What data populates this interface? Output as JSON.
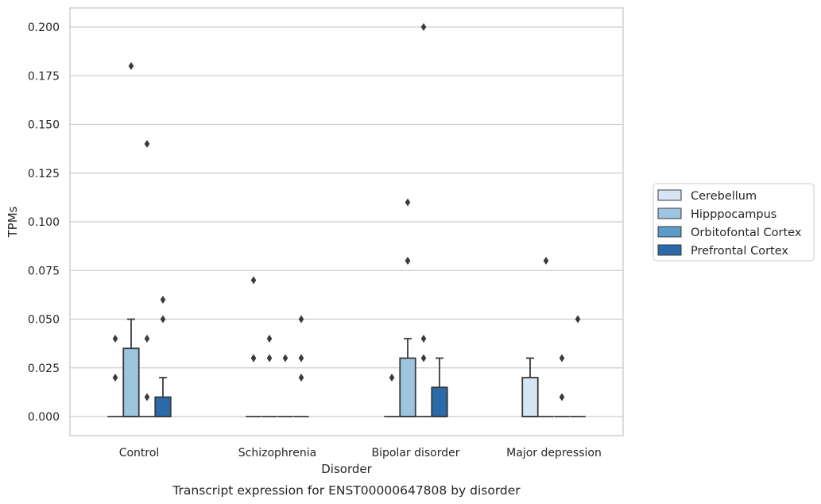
{
  "chart_data": {
    "type": "box",
    "title": "",
    "caption": "Transcript expression for ENST00000647808 by disorder",
    "xlabel": "Disorder",
    "ylabel": "TPMs",
    "categories": [
      "Control",
      "Schizophrenia",
      "Bipolar disorder",
      "Major depression"
    ],
    "ylim": [
      -0.01,
      0.21
    ],
    "yticks": [
      "0.000",
      "0.025",
      "0.050",
      "0.075",
      "0.100",
      "0.125",
      "0.150",
      "0.175",
      "0.200"
    ],
    "grid": "horizontal",
    "legend_position": "right",
    "series": [
      {
        "name": "Cerebellum",
        "color": "#d6e5f4",
        "boxes": [
          {
            "q1": 0,
            "median": 0,
            "q3": 0,
            "whisker_low": 0,
            "whisker_high": 0,
            "outliers": [
              0.02,
              0.04
            ]
          },
          {
            "q1": 0,
            "median": 0,
            "q3": 0,
            "whisker_low": 0,
            "whisker_high": 0,
            "outliers": [
              0.03,
              0.03,
              0.07
            ]
          },
          {
            "q1": 0,
            "median": 0,
            "q3": 0,
            "whisker_low": 0,
            "whisker_high": 0,
            "outliers": [
              0.02
            ]
          },
          {
            "q1": 0,
            "median": 0,
            "q3": 0.02,
            "whisker_low": 0,
            "whisker_high": 0.03,
            "outliers": []
          }
        ]
      },
      {
        "name": "Hipppocampus",
        "color": "#9dc5df",
        "boxes": [
          {
            "q1": 0,
            "median": 0,
            "q3": 0.035,
            "whisker_low": 0,
            "whisker_high": 0.05,
            "outliers": [
              0.18
            ]
          },
          {
            "q1": 0,
            "median": 0,
            "q3": 0,
            "whisker_low": 0,
            "whisker_high": 0,
            "outliers": [
              0.03,
              0.04
            ]
          },
          {
            "q1": 0,
            "median": 0,
            "q3": 0.03,
            "whisker_low": 0,
            "whisker_high": 0.04,
            "outliers": [
              0.08,
              0.08,
              0.11
            ]
          },
          {
            "q1": 0,
            "median": 0,
            "q3": 0,
            "whisker_low": 0,
            "whisker_high": 0,
            "outliers": [
              0.08
            ]
          }
        ]
      },
      {
        "name": "Orbitofontal Cortex",
        "color": "#5b9bc8",
        "boxes": [
          {
            "q1": 0,
            "median": 0,
            "q3": 0,
            "whisker_low": 0,
            "whisker_high": 0,
            "outliers": [
              0.01,
              0.04,
              0.14
            ]
          },
          {
            "q1": 0,
            "median": 0,
            "q3": 0,
            "whisker_low": 0,
            "whisker_high": 0,
            "outliers": [
              0.03
            ]
          },
          {
            "q1": 0,
            "median": 0,
            "q3": 0,
            "whisker_low": 0,
            "whisker_high": 0,
            "outliers": [
              0.03,
              0.04,
              0.2
            ]
          },
          {
            "q1": 0,
            "median": 0,
            "q3": 0,
            "whisker_low": 0,
            "whisker_high": 0,
            "outliers": [
              0.01,
              0.03
            ]
          }
        ]
      },
      {
        "name": "Prefrontal Cortex",
        "color": "#2a6aa8",
        "boxes": [
          {
            "q1": 0,
            "median": 0,
            "q3": 0.01,
            "whisker_low": 0,
            "whisker_high": 0.02,
            "outliers": [
              0.05,
              0.06
            ]
          },
          {
            "q1": 0,
            "median": 0,
            "q3": 0,
            "whisker_low": 0,
            "whisker_high": 0,
            "outliers": [
              0.02,
              0.03,
              0.05
            ]
          },
          {
            "q1": 0,
            "median": 0,
            "q3": 0.015,
            "whisker_low": 0,
            "whisker_high": 0.03,
            "outliers": []
          },
          {
            "q1": 0,
            "median": 0,
            "q3": 0,
            "whisker_low": 0,
            "whisker_high": 0,
            "outliers": [
              0.05
            ]
          }
        ]
      }
    ]
  }
}
